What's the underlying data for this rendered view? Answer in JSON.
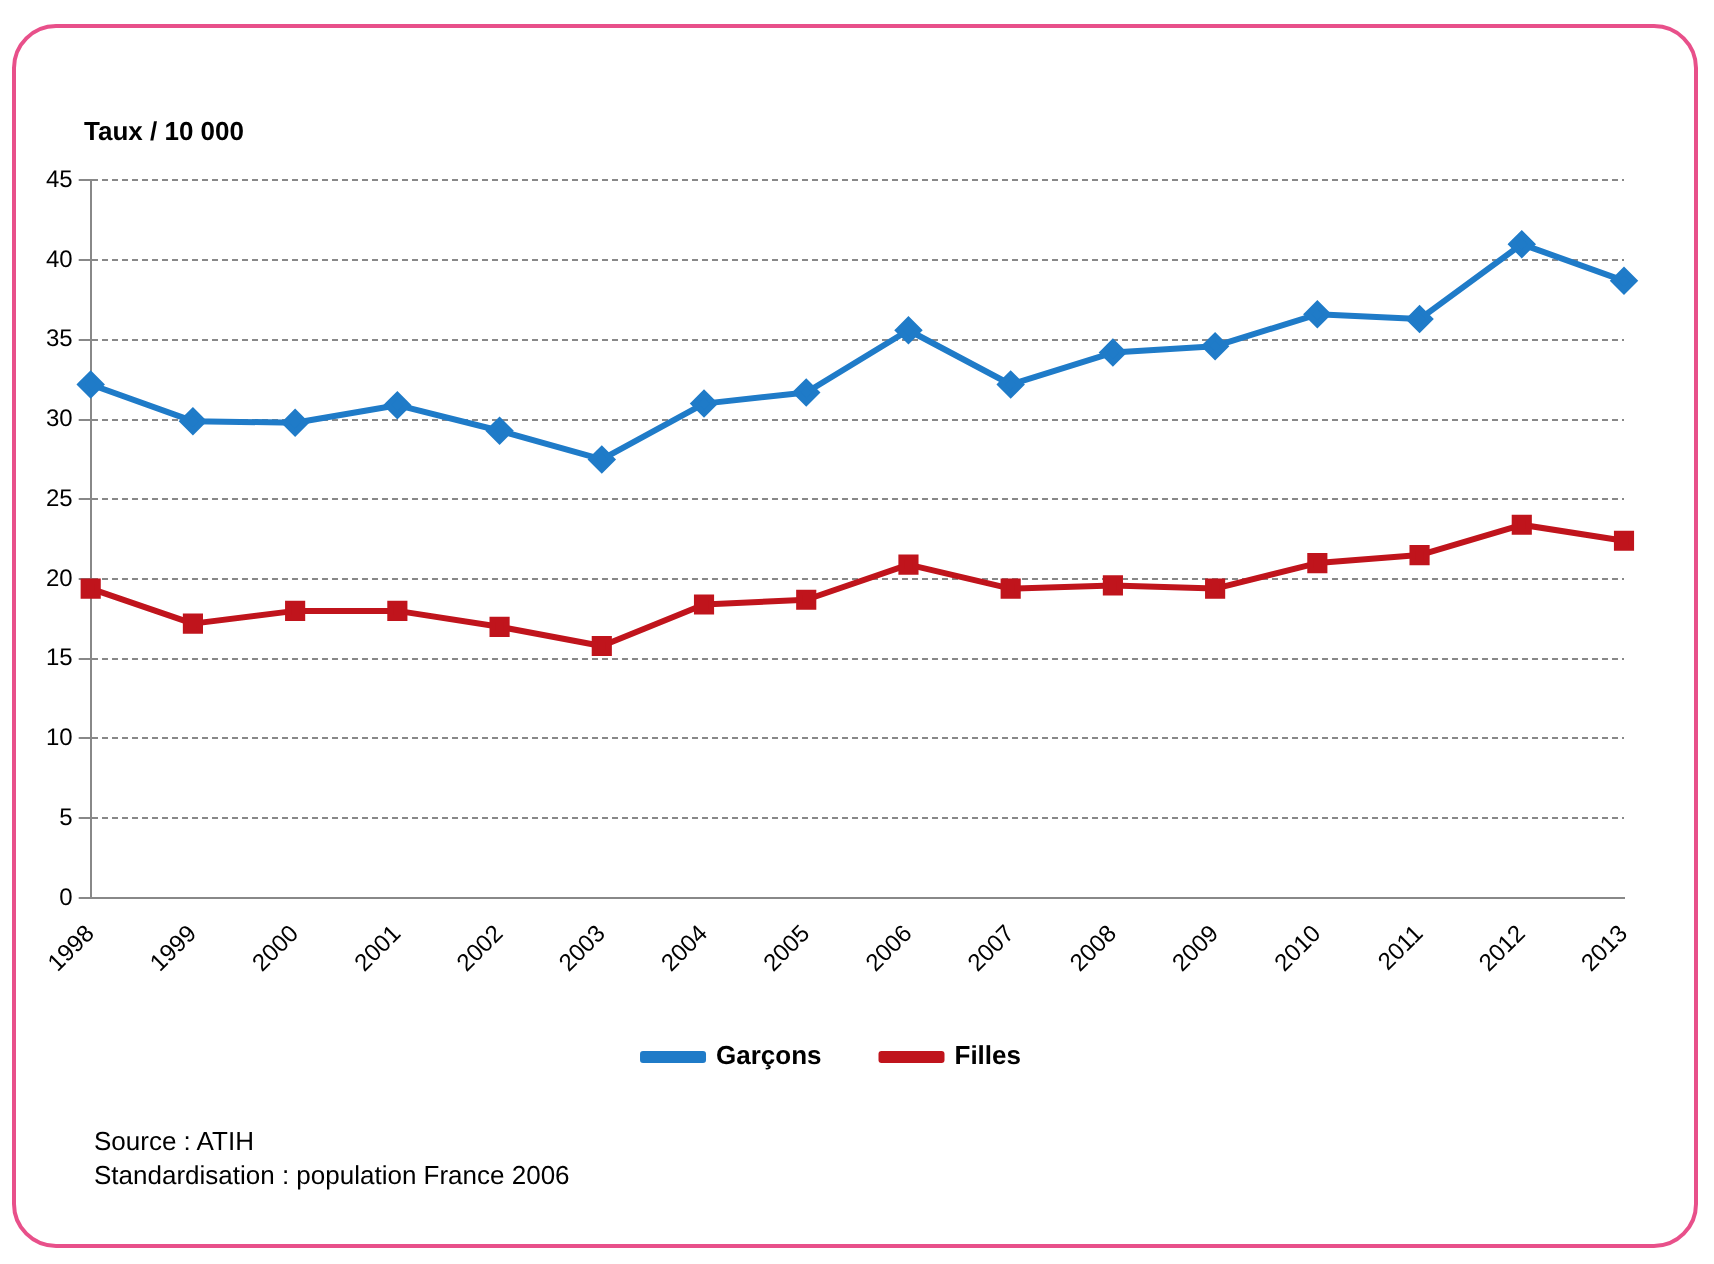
{
  "chart_data": {
    "type": "line",
    "ylabel": "Taux / 10 000",
    "categories": [
      "1998",
      "1999",
      "2000",
      "2001",
      "2002",
      "2003",
      "2004",
      "2005",
      "2006",
      "2007",
      "2008",
      "2009",
      "2010",
      "2011",
      "2012",
      "2013"
    ],
    "series": [
      {
        "name": "Garçons",
        "color": "#1f7bc8",
        "marker": "diamond",
        "values": [
          32.2,
          29.9,
          29.8,
          30.9,
          29.3,
          27.5,
          31.0,
          31.7,
          35.6,
          32.2,
          34.2,
          34.6,
          36.6,
          36.3,
          41.0,
          38.7
        ]
      },
      {
        "name": "Filles",
        "color": "#c0141c",
        "marker": "square",
        "values": [
          19.4,
          17.2,
          18.0,
          18.0,
          17.0,
          15.8,
          18.4,
          18.7,
          20.9,
          19.4,
          19.6,
          19.4,
          21.0,
          21.5,
          23.4,
          22.4
        ]
      }
    ],
    "ylim": [
      0,
      45
    ],
    "yticks": [
      0,
      5,
      10,
      15,
      20,
      25,
      30,
      35,
      40,
      45
    ],
    "grid": "y",
    "legend": "bottom",
    "line_style": "solid",
    "annotations": [
      "Source : ATIH",
      "Standardisation : population France 2006"
    ]
  }
}
